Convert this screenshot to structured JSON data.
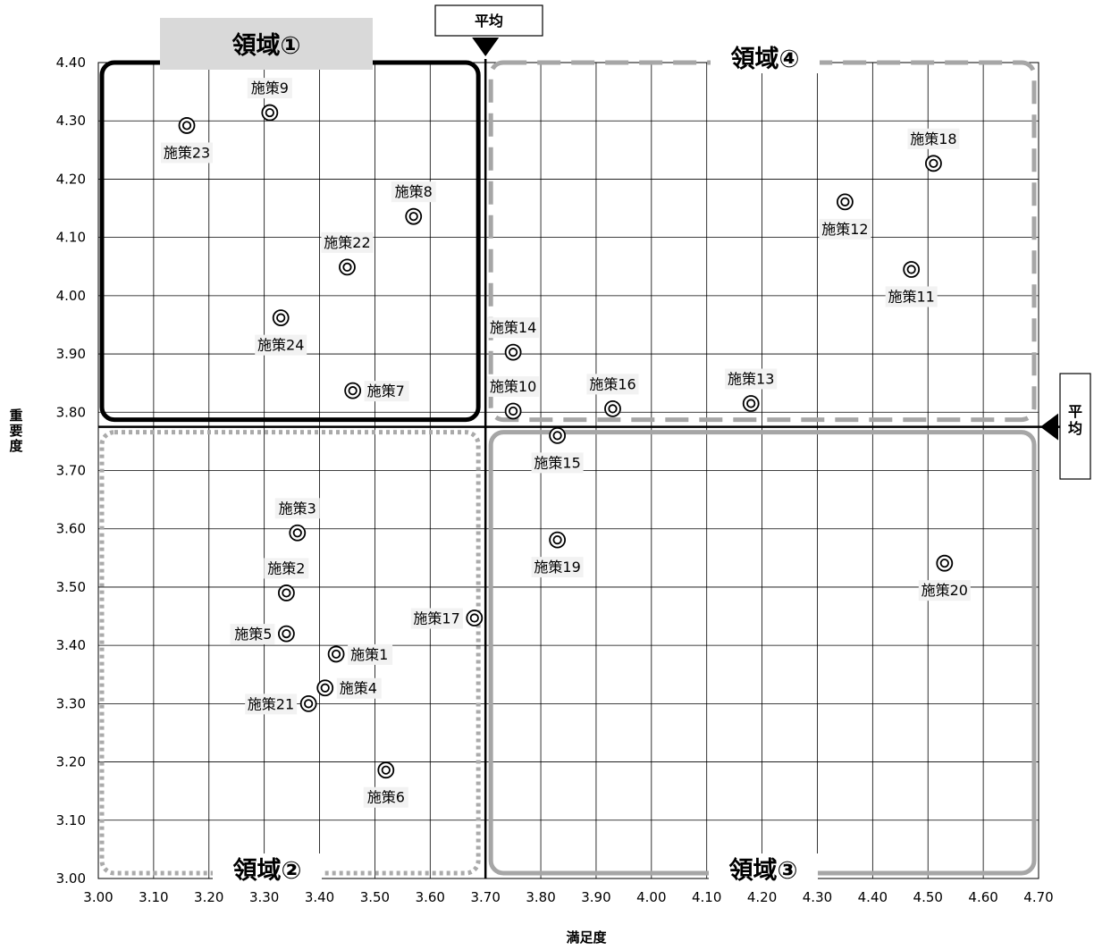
{
  "chart_data": {
    "type": "scatter",
    "title": "",
    "xlabel": "満足度",
    "ylabel": "重要度",
    "xlim": [
      3.0,
      4.7
    ],
    "ylim": [
      3.0,
      4.4
    ],
    "x_ticks": [
      "3.00",
      "3.10",
      "3.20",
      "3.30",
      "3.40",
      "3.50",
      "3.60",
      "3.70",
      "3.80",
      "3.90",
      "4.00",
      "4.10",
      "4.20",
      "4.30",
      "4.40",
      "4.50",
      "4.60",
      "4.70"
    ],
    "y_ticks": [
      "3.00",
      "3.10",
      "3.20",
      "3.30",
      "3.40",
      "3.50",
      "3.60",
      "3.70",
      "3.80",
      "3.90",
      "4.00",
      "4.10",
      "4.20",
      "4.30",
      "4.40"
    ],
    "grid": true,
    "average": {
      "label": "平均",
      "x": 3.7,
      "y": 3.775
    },
    "regions": [
      {
        "label": "領域①",
        "x_range": [
          3.0,
          3.7
        ],
        "y_range": [
          3.775,
          4.4
        ],
        "border": "solid",
        "color": "#000000"
      },
      {
        "label": "領域②",
        "x_range": [
          3.0,
          3.7
        ],
        "y_range": [
          3.0,
          3.775
        ],
        "border": "dotted",
        "color": "#aaaaaa"
      },
      {
        "label": "領域③",
        "x_range": [
          3.7,
          4.7
        ],
        "y_range": [
          3.0,
          3.775
        ],
        "border": "solid",
        "color": "#a6a6a6"
      },
      {
        "label": "領域④",
        "x_range": [
          3.7,
          4.7
        ],
        "y_range": [
          3.775,
          4.4
        ],
        "border": "dashed",
        "color": "#a6a6a6"
      }
    ],
    "points": [
      {
        "label": "施策1",
        "x": 3.43,
        "y": 3.385,
        "label_pos": "right"
      },
      {
        "label": "施策2",
        "x": 3.34,
        "y": 3.49,
        "label_pos": "above"
      },
      {
        "label": "施策3",
        "x": 3.36,
        "y": 3.593,
        "label_pos": "above"
      },
      {
        "label": "施策4",
        "x": 3.41,
        "y": 3.327,
        "label_pos": "right"
      },
      {
        "label": "施策5",
        "x": 3.34,
        "y": 3.42,
        "label_pos": "left"
      },
      {
        "label": "施策6",
        "x": 3.52,
        "y": 3.186,
        "label_pos": "below"
      },
      {
        "label": "施策7",
        "x": 3.46,
        "y": 3.837,
        "label_pos": "right"
      },
      {
        "label": "施策8",
        "x": 3.57,
        "y": 4.136,
        "label_pos": "above"
      },
      {
        "label": "施策9",
        "x": 3.31,
        "y": 4.314,
        "label_pos": "above"
      },
      {
        "label": "施策10",
        "x": 3.75,
        "y": 3.802,
        "label_pos": "above"
      },
      {
        "label": "施策11",
        "x": 4.47,
        "y": 4.045,
        "label_pos": "below"
      },
      {
        "label": "施策12",
        "x": 4.35,
        "y": 4.161,
        "label_pos": "below"
      },
      {
        "label": "施策13",
        "x": 4.18,
        "y": 3.815,
        "label_pos": "above"
      },
      {
        "label": "施策14",
        "x": 3.75,
        "y": 3.903,
        "label_pos": "above"
      },
      {
        "label": "施策15",
        "x": 3.83,
        "y": 3.76,
        "label_pos": "below"
      },
      {
        "label": "施策16",
        "x": 3.93,
        "y": 3.806,
        "label_pos": "above"
      },
      {
        "label": "施策17",
        "x": 3.68,
        "y": 3.447,
        "label_pos": "left"
      },
      {
        "label": "施策18",
        "x": 4.51,
        "y": 4.227,
        "label_pos": "above"
      },
      {
        "label": "施策19",
        "x": 3.83,
        "y": 3.581,
        "label_pos": "below"
      },
      {
        "label": "施策20",
        "x": 4.53,
        "y": 3.541,
        "label_pos": "below"
      },
      {
        "label": "施策21",
        "x": 3.38,
        "y": 3.3,
        "label_pos": "left"
      },
      {
        "label": "施策22",
        "x": 3.45,
        "y": 4.049,
        "label_pos": "above"
      },
      {
        "label": "施策23",
        "x": 3.16,
        "y": 4.292,
        "label_pos": "below"
      },
      {
        "label": "施策24",
        "x": 3.33,
        "y": 3.962,
        "label_pos": "below"
      }
    ]
  }
}
